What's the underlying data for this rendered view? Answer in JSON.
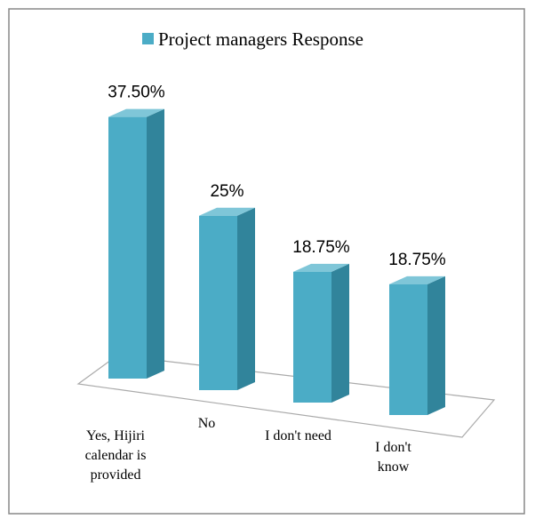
{
  "chart_data": {
    "type": "bar3d",
    "categories": [
      "Yes, Hijiri calendar is provided",
      "No",
      "I don't need",
      "I don't know"
    ],
    "series": [
      {
        "name": "Project managers Response",
        "color": "#4bacc6",
        "values": [
          37.5,
          25,
          18.75,
          18.75
        ],
        "value_labels": [
          "37.50%",
          "25%",
          "18.75%",
          "18.75%"
        ]
      }
    ],
    "legend": "top"
  }
}
